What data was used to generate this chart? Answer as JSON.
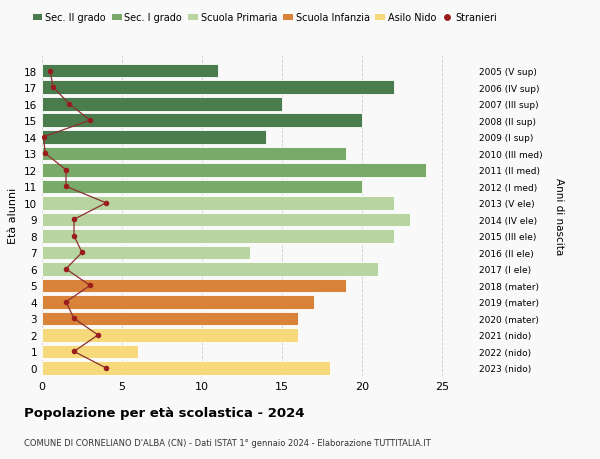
{
  "ages": [
    18,
    17,
    16,
    15,
    14,
    13,
    12,
    11,
    10,
    9,
    8,
    7,
    6,
    5,
    4,
    3,
    2,
    1,
    0
  ],
  "bar_values": [
    11,
    22,
    15,
    20,
    14,
    19,
    24,
    20,
    22,
    23,
    22,
    13,
    21,
    19,
    17,
    16,
    16,
    6,
    18
  ],
  "bar_colors": [
    "#4a7c4e",
    "#4a7c4e",
    "#4a7c4e",
    "#4a7c4e",
    "#4a7c4e",
    "#7aaa6a",
    "#7aaa6a",
    "#7aaa6a",
    "#b8d4a0",
    "#b8d4a0",
    "#b8d4a0",
    "#b8d4a0",
    "#b8d4a0",
    "#d9823a",
    "#d9823a",
    "#d9823a",
    "#f5d97a",
    "#f5d97a",
    "#f5d97a"
  ],
  "stranieri": [
    0.5,
    0.7,
    1.7,
    3.0,
    0.1,
    0.2,
    1.5,
    1.5,
    4.0,
    2.0,
    2.0,
    2.5,
    1.5,
    3.0,
    1.5,
    2.0,
    3.5,
    2.0,
    4.0
  ],
  "right_labels": [
    "2005 (V sup)",
    "2006 (IV sup)",
    "2007 (III sup)",
    "2008 (II sup)",
    "2009 (I sup)",
    "2010 (III med)",
    "2011 (II med)",
    "2012 (I med)",
    "2013 (V ele)",
    "2014 (IV ele)",
    "2015 (III ele)",
    "2016 (II ele)",
    "2017 (I ele)",
    "2018 (mater)",
    "2019 (mater)",
    "2020 (mater)",
    "2021 (nido)",
    "2022 (nido)",
    "2023 (nido)"
  ],
  "ylabel": "Età alunni",
  "right_ylabel": "Anni di nascita",
  "xlim": [
    0,
    27
  ],
  "xticks": [
    0,
    5,
    10,
    15,
    20,
    25
  ],
  "ylim": [
    -0.5,
    19.0
  ],
  "title": "Popolazione per età scolastica - 2024",
  "subtitle": "COMUNE DI CORNELIANO D'ALBA (CN) - Dati ISTAT 1° gennaio 2024 - Elaborazione TUTTITALIA.IT",
  "legend_labels": [
    "Sec. II grado",
    "Sec. I grado",
    "Scuola Primaria",
    "Scuola Infanzia",
    "Asilo Nido",
    "Stranieri"
  ],
  "legend_colors": [
    "#4a7c4e",
    "#7aaa6a",
    "#b8d4a0",
    "#d9823a",
    "#f5d97a",
    "#9b1c1c"
  ],
  "bar_height": 0.82,
  "bg_color": "#f9f9f9",
  "grid_color": "#cccccc",
  "stranieri_color": "#9b1c1c",
  "stranieri_line_color": "#8b3030"
}
